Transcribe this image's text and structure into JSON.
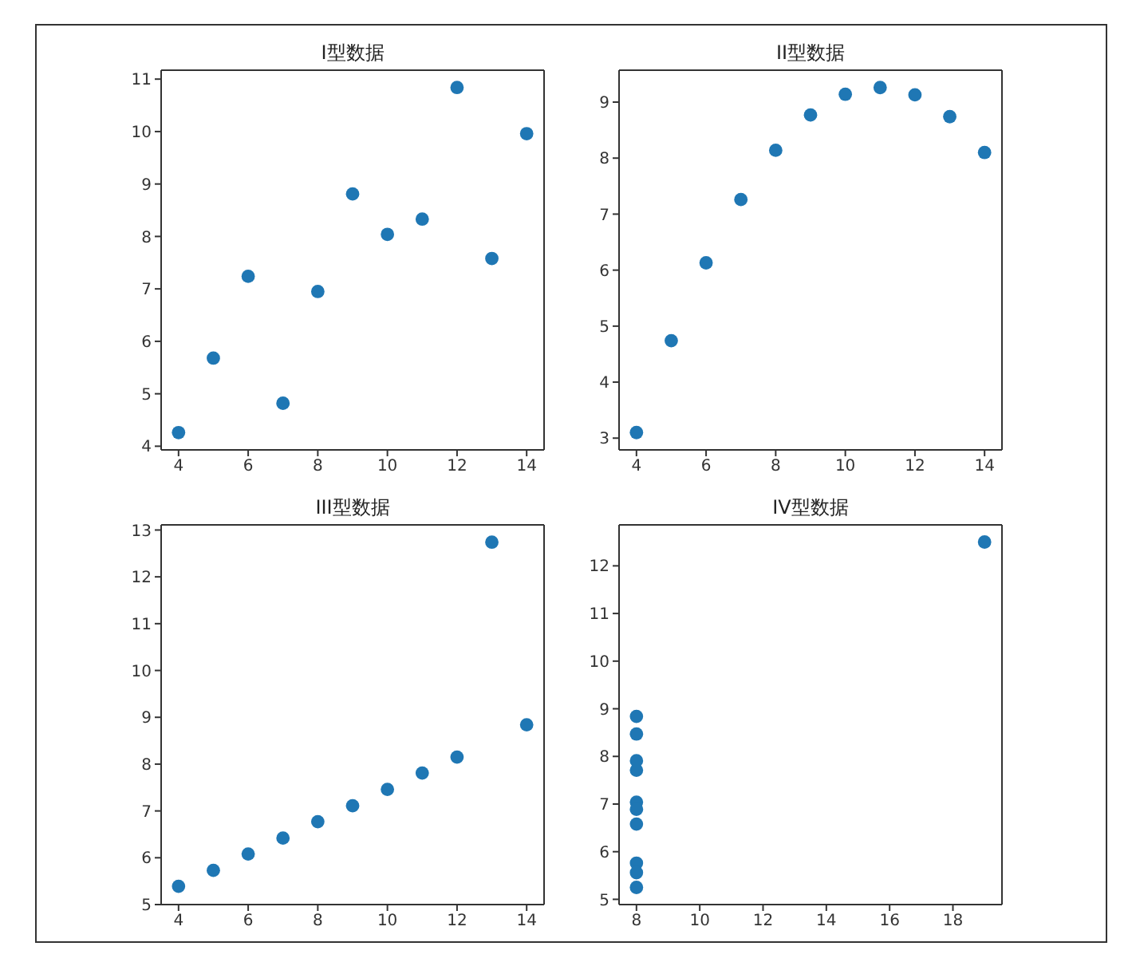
{
  "chart_data": [
    {
      "type": "scatter",
      "title": "I型数据",
      "x": [
        10,
        8,
        13,
        9,
        11,
        14,
        6,
        4,
        12,
        7,
        5
      ],
      "values": [
        8.04,
        6.95,
        7.58,
        8.81,
        8.33,
        9.96,
        7.24,
        4.26,
        10.84,
        4.82,
        5.68
      ],
      "color": "#1f77b4",
      "marker": "circle",
      "xlim": [
        3.5,
        14.5
      ],
      "ylim": [
        3.93,
        11.17
      ],
      "xticks": [
        4,
        6,
        8,
        10,
        12,
        14
      ],
      "yticks": [
        4,
        5,
        6,
        7,
        8,
        9,
        10,
        11
      ]
    },
    {
      "type": "scatter",
      "title": "II型数据",
      "x": [
        10,
        8,
        13,
        9,
        11,
        14,
        6,
        4,
        12,
        7,
        5
      ],
      "values": [
        9.14,
        8.14,
        8.74,
        8.77,
        9.26,
        8.1,
        6.13,
        3.1,
        9.13,
        7.26,
        4.74
      ],
      "color": "#1f77b4",
      "marker": "circle",
      "xlim": [
        3.5,
        14.5
      ],
      "ylim": [
        2.79,
        9.57
      ],
      "xticks": [
        4,
        6,
        8,
        10,
        12,
        14
      ],
      "yticks": [
        3,
        4,
        5,
        6,
        7,
        8,
        9
      ]
    },
    {
      "type": "scatter",
      "title": "III型数据",
      "x": [
        10,
        8,
        13,
        9,
        11,
        14,
        6,
        4,
        12,
        7,
        5
      ],
      "values": [
        7.46,
        6.77,
        12.74,
        7.11,
        7.81,
        8.84,
        6.08,
        5.39,
        8.15,
        6.42,
        5.73
      ],
      "color": "#1f77b4",
      "marker": "circle",
      "xlim": [
        3.5,
        14.5
      ],
      "ylim": [
        5,
        13.11
      ],
      "xticks": [
        4,
        6,
        8,
        10,
        12,
        14
      ],
      "yticks": [
        5,
        6,
        7,
        8,
        9,
        10,
        11,
        12,
        13
      ]
    },
    {
      "type": "scatter",
      "title": "IV型数据",
      "x": [
        8,
        8,
        8,
        8,
        8,
        8,
        8,
        19,
        8,
        8,
        8
      ],
      "values": [
        6.58,
        5.76,
        7.71,
        8.84,
        8.47,
        7.04,
        5.25,
        12.5,
        5.56,
        7.91,
        6.89
      ],
      "color": "#1f77b4",
      "marker": "circle",
      "xlim": [
        7.45,
        19.55
      ],
      "ylim": [
        4.89,
        12.86
      ],
      "xticks": [
        8,
        10,
        12,
        14,
        16,
        18
      ],
      "yticks": [
        5,
        6,
        7,
        8,
        9,
        10,
        11,
        12
      ]
    }
  ]
}
